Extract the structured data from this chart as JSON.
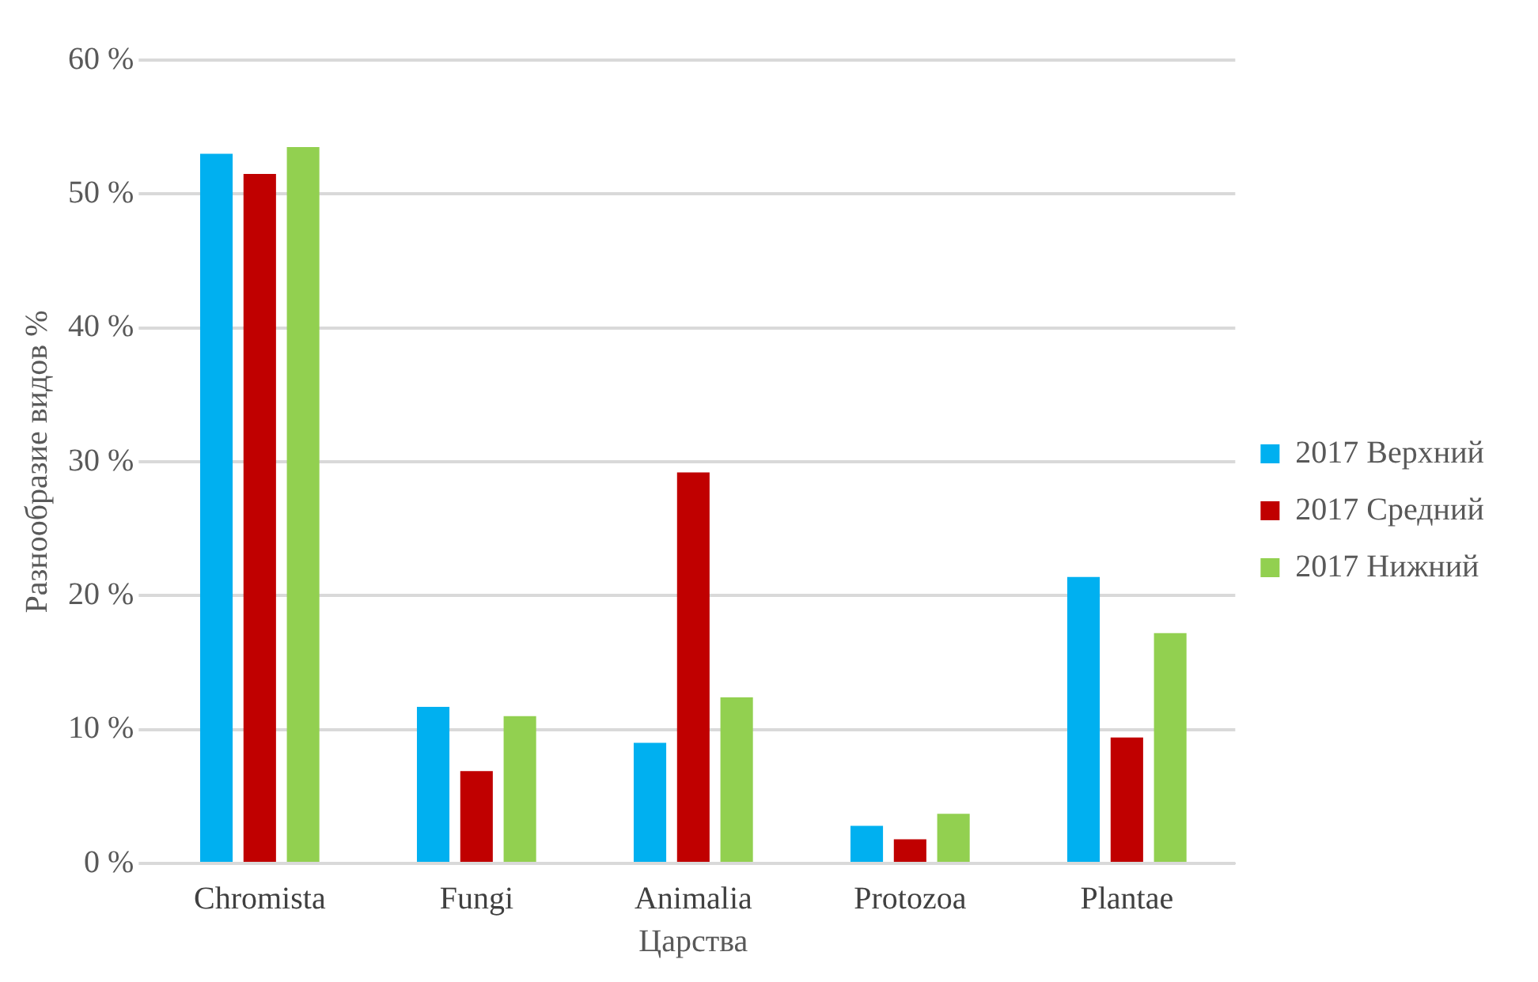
{
  "chart_data": {
    "type": "bar",
    "xlabel": "Царства",
    "ylabel": "Разнообразие видов %",
    "categories": [
      "Chromista",
      "Fungi",
      "Animalia",
      "Protozoa",
      "Plantae"
    ],
    "series": [
      {
        "name": "2017 Верхний",
        "color": "#00b0f0",
        "values": [
          53,
          11.7,
          9,
          2.8,
          21.4
        ]
      },
      {
        "name": "2017 Средний",
        "color": "#c00000",
        "values": [
          51.5,
          6.9,
          29.2,
          1.8,
          9.4
        ]
      },
      {
        "name": "2017 Нижний",
        "color": "#92d050",
        "values": [
          53.5,
          11,
          12.4,
          3.7,
          17.2
        ]
      }
    ],
    "ylim": [
      0,
      60
    ],
    "yticks": [
      {
        "value": 0,
        "label": "0 %"
      },
      {
        "value": 10,
        "label": "10 %"
      },
      {
        "value": 20,
        "label": "20 %"
      },
      {
        "value": 30,
        "label": "30 %"
      },
      {
        "value": 40,
        "label": "40 %"
      },
      {
        "value": 50,
        "label": "50 %"
      },
      {
        "value": 60,
        "label": "60 %"
      }
    ],
    "grid": "y",
    "legend": "right"
  }
}
